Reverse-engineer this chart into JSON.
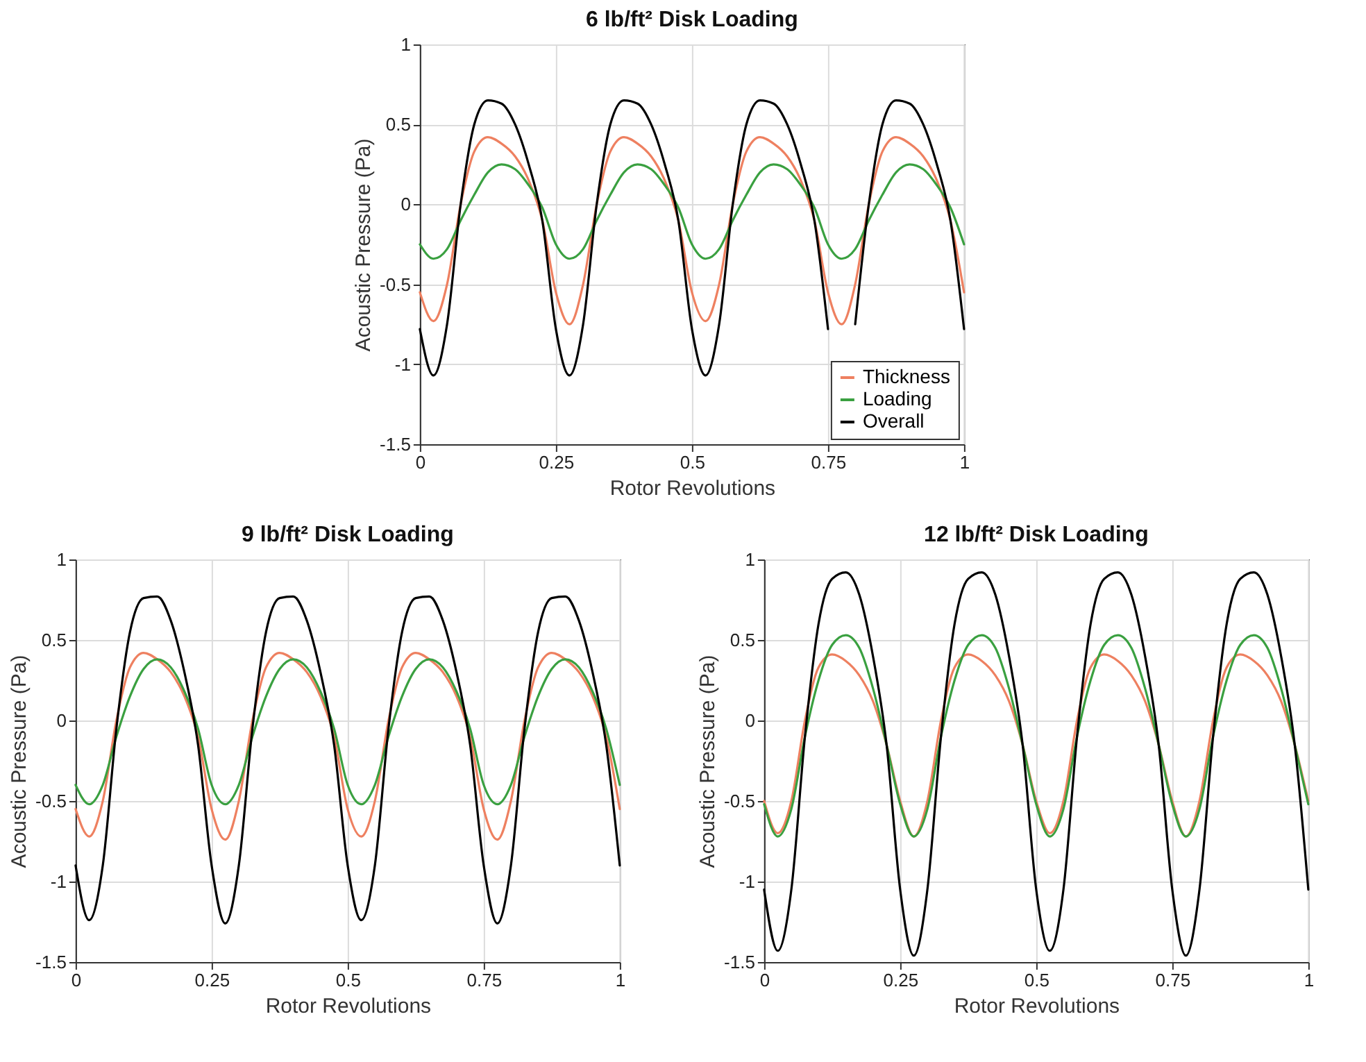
{
  "chart_data": [
    {
      "type": "line",
      "title": "6 lb/ft² Disk Loading",
      "xlabel": "Rotor Revolutions",
      "ylabel": "Acoustic Pressure (Pa)",
      "xlim": [
        0,
        1
      ],
      "xticks": [
        0,
        0.25,
        0.5,
        0.75,
        1
      ],
      "ylim": [
        -1.5,
        1
      ],
      "yticks": [
        -1.5,
        -1,
        -0.5,
        0,
        0.5,
        1
      ],
      "grid": true,
      "legend": "bottom right",
      "x": [
        0,
        0.025,
        0.05,
        0.075,
        0.1,
        0.125,
        0.15,
        0.175,
        0.2,
        0.225,
        0.25,
        0.275,
        0.3,
        0.325,
        0.35,
        0.375,
        0.4,
        0.425,
        0.45,
        0.475,
        0.5,
        0.525,
        0.55,
        0.575,
        0.6,
        0.625,
        0.65,
        0.675,
        0.7,
        0.725,
        0.75,
        0.775,
        0.8,
        0.825,
        0.85,
        0.875,
        0.9,
        0.925,
        0.95,
        0.975,
        1
      ],
      "series": [
        {
          "name": "Thickness",
          "color": "#ee8060",
          "values": [
            -0.55,
            -0.73,
            -0.5,
            0,
            0.33,
            0.42,
            0.38,
            0.3,
            0.15,
            -0.1,
            -0.55,
            -0.75,
            -0.5,
            0,
            0.33,
            0.42,
            0.38,
            0.3,
            0.15,
            -0.1,
            -0.55,
            -0.73,
            -0.5,
            0,
            0.33,
            0.42,
            0.38,
            0.3,
            0.15,
            -0.1,
            -0.55,
            -0.75,
            -0.5,
            0,
            0.33,
            0.42,
            0.38,
            0.3,
            0.15,
            -0.1,
            -0.55
          ]
        },
        {
          "name": "Loading",
          "color": "#3aa040",
          "values": [
            -0.25,
            -0.34,
            -0.28,
            -0.1,
            0.06,
            0.2,
            0.25,
            0.22,
            0.12,
            -0.02,
            -0.25,
            -0.34,
            -0.28,
            -0.1,
            0.06,
            0.2,
            0.25,
            0.22,
            0.12,
            -0.02,
            -0.25,
            -0.34,
            -0.28,
            -0.1,
            0.06,
            0.2,
            0.25,
            0.22,
            0.12,
            -0.02,
            -0.25,
            -0.34,
            -0.28,
            -0.1,
            0.06,
            0.2,
            0.25,
            0.22,
            0.12,
            -0.02,
            -0.25
          ]
        },
        {
          "name": "Overall",
          "color": "#000000",
          "values": [
            -0.78,
            -1.07,
            -0.75,
            0,
            0.5,
            0.65,
            0.63,
            0.5,
            0.25,
            -0.1,
            -0.78,
            -1.07,
            -0.75,
            0,
            0.5,
            0.65,
            0.63,
            0.5,
            0.25,
            -0.1,
            -0.78,
            -1.07,
            -0.75,
            0,
            0.5,
            0.65,
            0.63,
            0.5,
            0.25,
            -0.1,
            -0.78,
            null,
            -0.75,
            0,
            0.5,
            0.65,
            0.63,
            0.5,
            0.25,
            -0.1,
            -0.78
          ]
        }
      ]
    },
    {
      "type": "line",
      "title": "9 lb/ft² Disk Loading",
      "xlabel": "Rotor Revolutions",
      "ylabel": "Acoustic Pressure (Pa)",
      "xlim": [
        0,
        1
      ],
      "xticks": [
        0,
        0.25,
        0.5,
        0.75,
        1
      ],
      "ylim": [
        -1.5,
        1
      ],
      "yticks": [
        -1.5,
        -1,
        -0.5,
        0,
        0.5,
        1
      ],
      "grid": true,
      "x": [
        0,
        0.025,
        0.05,
        0.075,
        0.1,
        0.125,
        0.15,
        0.175,
        0.2,
        0.225,
        0.25,
        0.275,
        0.3,
        0.325,
        0.35,
        0.375,
        0.4,
        0.425,
        0.45,
        0.475,
        0.5,
        0.525,
        0.55,
        0.575,
        0.6,
        0.625,
        0.65,
        0.675,
        0.7,
        0.725,
        0.75,
        0.775,
        0.8,
        0.825,
        0.85,
        0.875,
        0.9,
        0.925,
        0.95,
        0.975,
        1
      ],
      "series": [
        {
          "color": "#ee8060",
          "values": [
            -0.55,
            -0.72,
            -0.5,
            0,
            0.33,
            0.42,
            0.38,
            0.3,
            0.15,
            -0.1,
            -0.55,
            -0.74,
            -0.5,
            0,
            0.33,
            0.42,
            0.38,
            0.3,
            0.15,
            -0.1,
            -0.55,
            -0.72,
            -0.5,
            0,
            0.33,
            0.42,
            0.38,
            0.3,
            0.15,
            -0.1,
            -0.55,
            -0.74,
            -0.5,
            0,
            0.33,
            0.42,
            0.38,
            0.3,
            0.15,
            -0.1,
            -0.55
          ]
        },
        {
          "color": "#3aa040",
          "values": [
            -0.4,
            -0.52,
            -0.4,
            -0.1,
            0.15,
            0.32,
            0.38,
            0.33,
            0.18,
            -0.05,
            -0.4,
            -0.52,
            -0.4,
            -0.1,
            0.15,
            0.32,
            0.38,
            0.33,
            0.18,
            -0.05,
            -0.4,
            -0.52,
            -0.4,
            -0.1,
            0.15,
            0.32,
            0.38,
            0.33,
            0.18,
            -0.05,
            -0.4,
            -0.52,
            -0.4,
            -0.1,
            0.15,
            0.32,
            0.38,
            0.33,
            0.18,
            -0.05,
            -0.4
          ]
        },
        {
          "color": "#000000",
          "values": [
            -0.9,
            -1.24,
            -0.9,
            -0.05,
            0.55,
            0.76,
            0.77,
            0.62,
            0.3,
            -0.15,
            -0.9,
            -1.26,
            -0.9,
            -0.05,
            0.55,
            0.76,
            0.77,
            0.62,
            0.3,
            -0.15,
            -0.9,
            -1.24,
            -0.9,
            -0.05,
            0.55,
            0.76,
            0.77,
            0.62,
            0.3,
            -0.15,
            -0.9,
            -1.26,
            -0.9,
            -0.05,
            0.55,
            0.76,
            0.77,
            0.62,
            0.3,
            -0.15,
            -0.9
          ]
        }
      ]
    },
    {
      "type": "line",
      "title": "12 lb/ft² Disk Loading",
      "xlabel": "Rotor Revolutions",
      "ylabel": "Acoustic Pressure (Pa)",
      "xlim": [
        0,
        1
      ],
      "xticks": [
        0,
        0.25,
        0.5,
        0.75,
        1
      ],
      "ylim": [
        -1.5,
        1
      ],
      "yticks": [
        -1.5,
        -1,
        -0.5,
        0,
        0.5,
        1
      ],
      "grid": true,
      "x": [
        0,
        0.025,
        0.05,
        0.075,
        0.1,
        0.125,
        0.15,
        0.175,
        0.2,
        0.225,
        0.25,
        0.275,
        0.3,
        0.325,
        0.35,
        0.375,
        0.4,
        0.425,
        0.45,
        0.475,
        0.5,
        0.525,
        0.55,
        0.575,
        0.6,
        0.625,
        0.65,
        0.675,
        0.7,
        0.725,
        0.75,
        0.775,
        0.8,
        0.825,
        0.85,
        0.875,
        0.9,
        0.925,
        0.95,
        0.975,
        1
      ],
      "series": [
        {
          "color": "#ee8060",
          "values": [
            -0.5,
            -0.7,
            -0.5,
            0,
            0.33,
            0.41,
            0.37,
            0.28,
            0.12,
            -0.15,
            -0.5,
            -0.72,
            -0.5,
            0,
            0.33,
            0.41,
            0.37,
            0.28,
            0.12,
            -0.15,
            -0.5,
            -0.7,
            -0.5,
            0,
            0.33,
            0.41,
            0.37,
            0.28,
            0.12,
            -0.15,
            -0.5,
            -0.72,
            -0.5,
            0,
            0.33,
            0.41,
            0.37,
            0.28,
            0.12,
            -0.15,
            -0.5
          ]
        },
        {
          "color": "#3aa040",
          "values": [
            -0.52,
            -0.72,
            -0.55,
            -0.1,
            0.25,
            0.47,
            0.53,
            0.45,
            0.2,
            -0.15,
            -0.52,
            -0.72,
            -0.55,
            -0.1,
            0.25,
            0.47,
            0.53,
            0.45,
            0.2,
            -0.15,
            -0.52,
            -0.72,
            -0.55,
            -0.1,
            0.25,
            0.47,
            0.53,
            0.45,
            0.2,
            -0.15,
            -0.52,
            -0.72,
            -0.55,
            -0.1,
            0.25,
            0.47,
            0.53,
            0.45,
            0.2,
            -0.15,
            -0.52
          ]
        },
        {
          "color": "#000000",
          "values": [
            -1.05,
            -1.43,
            -1.05,
            -0.1,
            0.6,
            0.88,
            0.92,
            0.78,
            0.4,
            -0.15,
            -1.05,
            -1.46,
            -1.05,
            -0.1,
            0.6,
            0.88,
            0.92,
            0.78,
            0.4,
            -0.15,
            -1.05,
            -1.43,
            -1.05,
            -0.1,
            0.6,
            0.88,
            0.92,
            0.78,
            0.4,
            -0.15,
            -1.05,
            -1.46,
            -1.05,
            -0.1,
            0.6,
            0.88,
            0.92,
            0.78,
            0.4,
            -0.15,
            -1.05
          ]
        }
      ]
    }
  ]
}
